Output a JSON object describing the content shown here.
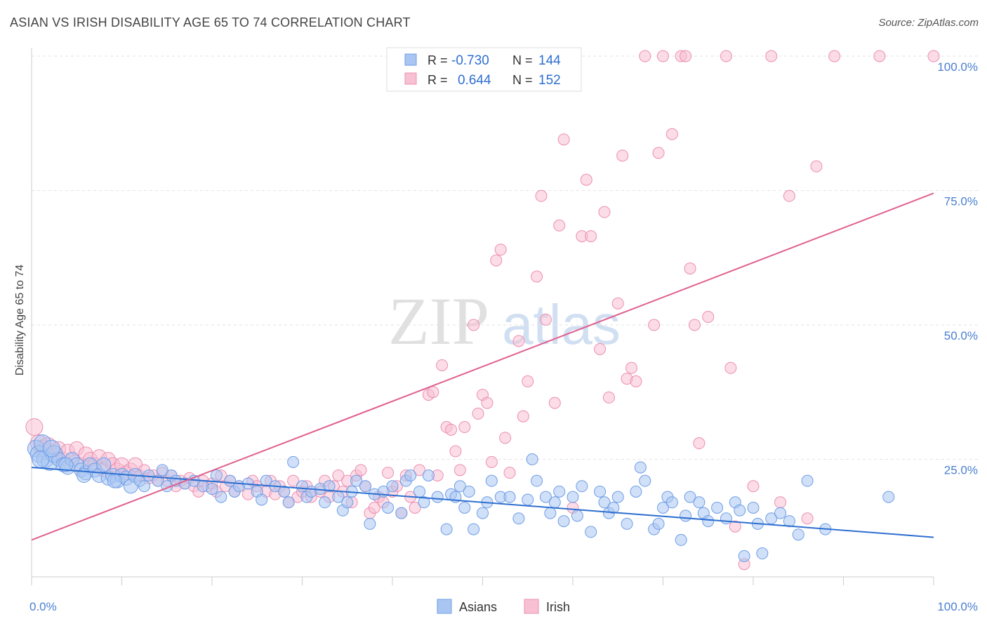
{
  "chart_data": {
    "type": "scatter",
    "title": "ASIAN VS IRISH DISABILITY AGE 65 TO 74 CORRELATION CHART",
    "source": "Source: ZipAtlas.com",
    "ylabel": "Disability Age 65 to 74",
    "xlabel": "",
    "xlim": [
      0,
      100
    ],
    "ylim": [
      0,
      100
    ],
    "x_tick_labels": [
      "0.0%",
      "100.0%"
    ],
    "y_tick_labels": [
      "25.0%",
      "50.0%",
      "75.0%",
      "100.0%"
    ],
    "y_ticks": [
      25,
      50,
      75,
      100
    ],
    "grid": true,
    "legend_position": "top-center",
    "watermark": "ZIPatlas",
    "stats": [
      {
        "r_label": "R =",
        "r": "-0.730",
        "n_label": "N =",
        "n": "144"
      },
      {
        "r_label": "R =",
        "r": "0.644",
        "n_label": "N =",
        "n": "152"
      }
    ],
    "series": [
      {
        "name": "Asians",
        "color": "#6f9de6",
        "fill": "#a9c6f3",
        "trend_color": "#2e6fd0",
        "trend": {
          "x": [
            0,
            100
          ],
          "y": [
            23.5,
            10.5
          ]
        },
        "points": [
          [
            0.5,
            27
          ],
          [
            0.8,
            26
          ],
          [
            1.2,
            28
          ],
          [
            1.5,
            25
          ],
          [
            2,
            24.5
          ],
          [
            2.5,
            26
          ],
          [
            3,
            25
          ],
          [
            3.5,
            24
          ],
          [
            4,
            23.5
          ],
          [
            4.5,
            25
          ],
          [
            5,
            24
          ],
          [
            5.5,
            23
          ],
          [
            6,
            22.5
          ],
          [
            6.5,
            24
          ],
          [
            7,
            23
          ],
          [
            7.5,
            22
          ],
          [
            8,
            24
          ],
          [
            8.5,
            21.5
          ],
          [
            9,
            22
          ],
          [
            9.5,
            21
          ],
          [
            10,
            22
          ],
          [
            10.5,
            21.5
          ],
          [
            11,
            20
          ],
          [
            11.5,
            22
          ],
          [
            12,
            21
          ],
          [
            12.5,
            20
          ],
          [
            13,
            22
          ],
          [
            14,
            21
          ],
          [
            14.5,
            23
          ],
          [
            15,
            20
          ],
          [
            15.5,
            22
          ],
          [
            16,
            21
          ],
          [
            17,
            20.5
          ],
          [
            18,
            21
          ],
          [
            19,
            20
          ],
          [
            20,
            19.5
          ],
          [
            20.5,
            22
          ],
          [
            21,
            18
          ],
          [
            22,
            21
          ],
          [
            22.5,
            19
          ],
          [
            23,
            20
          ],
          [
            24,
            20.5
          ],
          [
            25,
            19
          ],
          [
            25.5,
            17.5
          ],
          [
            26,
            21
          ],
          [
            27,
            20
          ],
          [
            28,
            19
          ],
          [
            28.5,
            17
          ],
          [
            29,
            24.5
          ],
          [
            30,
            20
          ],
          [
            30.5,
            18
          ],
          [
            31,
            19
          ],
          [
            32,
            19.5
          ],
          [
            32.5,
            17
          ],
          [
            33,
            20
          ],
          [
            34,
            18
          ],
          [
            34.5,
            15.5
          ],
          [
            35,
            17
          ],
          [
            35.5,
            19
          ],
          [
            36,
            21
          ],
          [
            37,
            20
          ],
          [
            37.5,
            13
          ],
          [
            38,
            18.5
          ],
          [
            39,
            19
          ],
          [
            39.5,
            16
          ],
          [
            40,
            20
          ],
          [
            41,
            15
          ],
          [
            41.5,
            21
          ],
          [
            42,
            22
          ],
          [
            43,
            19
          ],
          [
            43.5,
            17
          ],
          [
            44,
            22
          ],
          [
            45,
            18
          ],
          [
            46,
            12
          ],
          [
            46.5,
            18.5
          ],
          [
            47,
            18
          ],
          [
            47.5,
            20
          ],
          [
            48,
            16
          ],
          [
            48.5,
            19
          ],
          [
            49,
            12
          ],
          [
            50,
            15
          ],
          [
            50.5,
            17
          ],
          [
            51,
            21
          ],
          [
            52,
            18
          ],
          [
            53,
            18
          ],
          [
            54,
            14
          ],
          [
            55,
            17.5
          ],
          [
            55.5,
            25
          ],
          [
            56,
            21
          ],
          [
            57,
            18
          ],
          [
            57.5,
            15
          ],
          [
            58,
            17
          ],
          [
            58.5,
            19
          ],
          [
            59,
            13.5
          ],
          [
            60,
            18
          ],
          [
            60.5,
            14.5
          ],
          [
            61,
            20
          ],
          [
            62,
            11.5
          ],
          [
            63,
            19
          ],
          [
            63.5,
            17
          ],
          [
            64,
            15
          ],
          [
            64.5,
            16
          ],
          [
            65,
            18
          ],
          [
            66,
            13
          ],
          [
            67,
            19
          ],
          [
            67.5,
            23.5
          ],
          [
            68,
            21
          ],
          [
            69,
            12
          ],
          [
            69.5,
            13
          ],
          [
            70,
            16
          ],
          [
            70.5,
            18
          ],
          [
            71,
            17
          ],
          [
            72,
            10
          ],
          [
            72.5,
            14.5
          ],
          [
            73,
            18
          ],
          [
            74,
            17
          ],
          [
            74.5,
            15
          ],
          [
            75,
            13.5
          ],
          [
            76,
            16
          ],
          [
            77,
            14
          ],
          [
            78,
            17
          ],
          [
            78.5,
            15.5
          ],
          [
            79,
            7
          ],
          [
            80,
            16
          ],
          [
            80.5,
            13
          ],
          [
            81,
            7.5
          ],
          [
            82,
            14
          ],
          [
            83,
            15
          ],
          [
            84,
            13.5
          ],
          [
            85,
            11
          ],
          [
            86,
            21
          ],
          [
            88,
            12
          ],
          [
            95,
            18
          ],
          [
            1,
            25
          ],
          [
            2.2,
            27
          ],
          [
            3.8,
            24
          ],
          [
            5.8,
            22
          ],
          [
            9.2,
            21
          ]
        ]
      },
      {
        "name": "Irish",
        "color": "#ec8fb0",
        "fill": "#f7c0d3",
        "trend_color": "#e0608f",
        "trend": {
          "x": [
            0,
            100
          ],
          "y": [
            10,
            74.5
          ]
        },
        "points": [
          [
            0.3,
            31
          ],
          [
            0.8,
            28
          ],
          [
            1.2,
            27
          ],
          [
            1.8,
            27.5
          ],
          [
            2.5,
            26
          ],
          [
            3,
            27
          ],
          [
            3.5,
            25
          ],
          [
            4,
            26.5
          ],
          [
            4.5,
            25
          ],
          [
            5,
            27
          ],
          [
            5.5,
            24
          ],
          [
            6,
            26
          ],
          [
            6.5,
            25
          ],
          [
            7,
            24
          ],
          [
            7.5,
            25.5
          ],
          [
            8,
            23
          ],
          [
            8.5,
            25
          ],
          [
            9,
            24
          ],
          [
            9.5,
            23
          ],
          [
            10,
            24
          ],
          [
            10.5,
            22.5
          ],
          [
            11,
            23
          ],
          [
            11.5,
            24
          ],
          [
            12,
            22
          ],
          [
            12.5,
            23
          ],
          [
            13,
            21.5
          ],
          [
            13.5,
            22
          ],
          [
            14,
            21
          ],
          [
            14.5,
            22.5
          ],
          [
            15,
            21
          ],
          [
            15.5,
            22
          ],
          [
            16,
            20
          ],
          [
            16.5,
            21
          ],
          [
            17,
            20.5
          ],
          [
            17.5,
            21.5
          ],
          [
            18,
            20
          ],
          [
            18.5,
            19
          ],
          [
            19,
            21
          ],
          [
            19.5,
            20
          ],
          [
            20,
            20.5
          ],
          [
            20.5,
            19
          ],
          [
            21,
            22
          ],
          [
            21.5,
            20
          ],
          [
            22,
            21
          ],
          [
            22.5,
            19
          ],
          [
            23,
            20
          ],
          [
            24,
            18.5
          ],
          [
            24.5,
            21
          ],
          [
            25,
            20
          ],
          [
            26,
            19
          ],
          [
            26.5,
            21
          ],
          [
            27,
            18.5
          ],
          [
            27.5,
            20
          ],
          [
            28,
            19
          ],
          [
            28.5,
            17
          ],
          [
            29,
            21
          ],
          [
            29.5,
            18
          ],
          [
            30,
            19
          ],
          [
            30.5,
            20
          ],
          [
            31,
            18
          ],
          [
            32,
            19
          ],
          [
            32.5,
            21
          ],
          [
            33,
            18
          ],
          [
            33.5,
            20
          ],
          [
            34,
            22
          ],
          [
            34.5,
            19
          ],
          [
            35,
            21
          ],
          [
            35.5,
            17
          ],
          [
            36,
            22
          ],
          [
            36.5,
            23
          ],
          [
            37,
            20
          ],
          [
            37.5,
            15
          ],
          [
            38,
            16
          ],
          [
            38.5,
            18
          ],
          [
            39,
            17
          ],
          [
            39.5,
            22.5
          ],
          [
            40,
            19
          ],
          [
            40.5,
            20
          ],
          [
            41,
            15
          ],
          [
            41.5,
            22
          ],
          [
            42,
            18
          ],
          [
            42.5,
            16
          ],
          [
            43,
            23
          ],
          [
            44,
            37
          ],
          [
            44.5,
            37.5
          ],
          [
            45,
            22
          ],
          [
            45.5,
            42.5
          ],
          [
            46,
            31
          ],
          [
            46.5,
            30.5
          ],
          [
            47,
            26.5
          ],
          [
            47.5,
            23
          ],
          [
            48,
            31
          ],
          [
            49,
            50
          ],
          [
            49.5,
            33.5
          ],
          [
            50,
            37
          ],
          [
            50.5,
            35.5
          ],
          [
            51,
            24.5
          ],
          [
            51.5,
            62
          ],
          [
            52,
            64
          ],
          [
            52.5,
            29
          ],
          [
            53,
            22.5
          ],
          [
            54,
            47
          ],
          [
            54.5,
            33
          ],
          [
            55,
            39.5
          ],
          [
            56,
            59
          ],
          [
            56.5,
            74
          ],
          [
            57,
            51
          ],
          [
            58,
            35.5
          ],
          [
            58.5,
            68.5
          ],
          [
            59,
            84.5
          ],
          [
            60,
            16
          ],
          [
            61,
            66.5
          ],
          [
            61.5,
            77
          ],
          [
            62,
            66.5
          ],
          [
            63,
            45.5
          ],
          [
            63.5,
            71
          ],
          [
            64,
            36.5
          ],
          [
            65,
            54
          ],
          [
            65.5,
            81.5
          ],
          [
            66,
            40
          ],
          [
            66.5,
            42
          ],
          [
            67,
            39.5
          ],
          [
            68,
            100
          ],
          [
            69,
            50
          ],
          [
            69.5,
            82
          ],
          [
            70,
            100
          ],
          [
            71,
            85.5
          ],
          [
            72,
            100
          ],
          [
            73,
            60.5
          ],
          [
            73.5,
            50
          ],
          [
            74,
            28
          ],
          [
            75,
            51.5
          ],
          [
            77,
            100
          ],
          [
            77.5,
            42
          ],
          [
            78,
            12.5
          ],
          [
            79,
            5.5
          ],
          [
            82,
            100
          ],
          [
            84,
            74
          ],
          [
            87,
            79.5
          ],
          [
            89,
            100
          ],
          [
            94,
            100
          ],
          [
            100,
            100
          ],
          [
            72.5,
            100
          ],
          [
            80,
            20
          ],
          [
            83,
            17
          ],
          [
            86,
            14
          ]
        ]
      }
    ]
  },
  "legend": {
    "asians_label": "Asians",
    "irish_label": "Irish"
  }
}
